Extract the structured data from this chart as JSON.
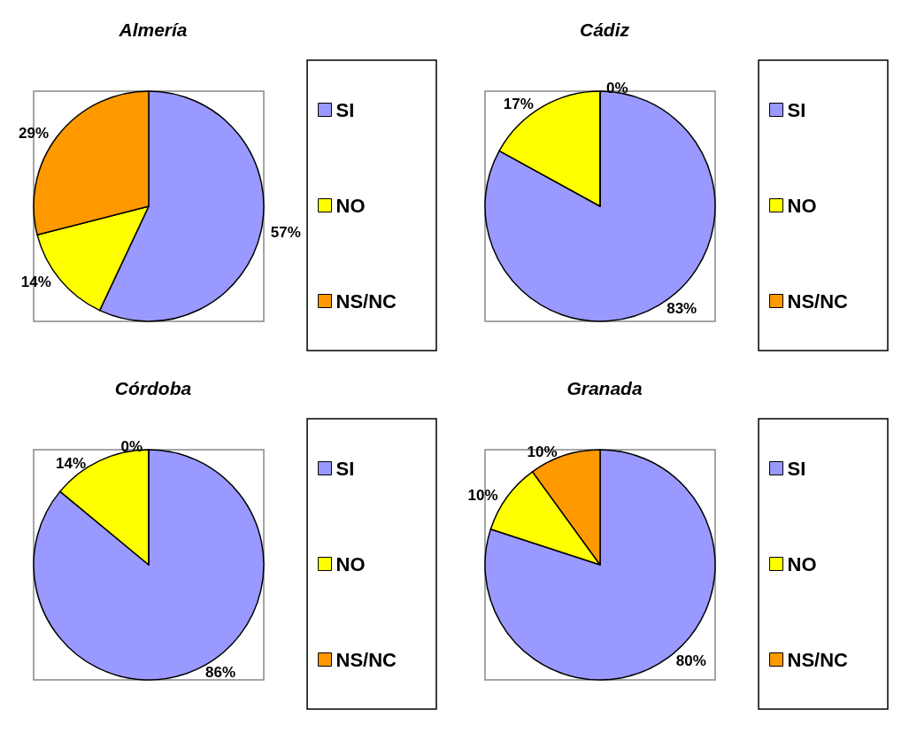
{
  "chart_data": [
    {
      "type": "pie",
      "title": "Almería",
      "categories": [
        "SI",
        "NO",
        "NS/NC"
      ],
      "values": [
        57,
        14,
        29
      ],
      "value_labels": [
        "57%",
        "14%",
        "29%"
      ],
      "colors": [
        "#9999ff",
        "#ffff00",
        "#ff9900"
      ],
      "legend": "right"
    },
    {
      "type": "pie",
      "title": "Cádiz",
      "categories": [
        "SI",
        "NO",
        "NS/NC"
      ],
      "values": [
        83,
        17,
        0
      ],
      "value_labels": [
        "83%",
        "17%",
        "0%"
      ],
      "colors": [
        "#9999ff",
        "#ffff00",
        "#ff9900"
      ],
      "legend": "right"
    },
    {
      "type": "pie",
      "title": "Córdoba",
      "categories": [
        "SI",
        "NO",
        "NS/NC"
      ],
      "values": [
        86,
        14,
        0
      ],
      "value_labels": [
        "86%",
        "14%",
        "0%"
      ],
      "colors": [
        "#9999ff",
        "#ffff00",
        "#ff9900"
      ],
      "legend": "right"
    },
    {
      "type": "pie",
      "title": "Granada",
      "categories": [
        "SI",
        "NO",
        "NS/NC"
      ],
      "values": [
        80,
        10,
        10
      ],
      "value_labels": [
        "80%",
        "10%",
        "10%"
      ],
      "colors": [
        "#9999ff",
        "#ffff00",
        "#ff9900"
      ],
      "legend": "right"
    }
  ]
}
